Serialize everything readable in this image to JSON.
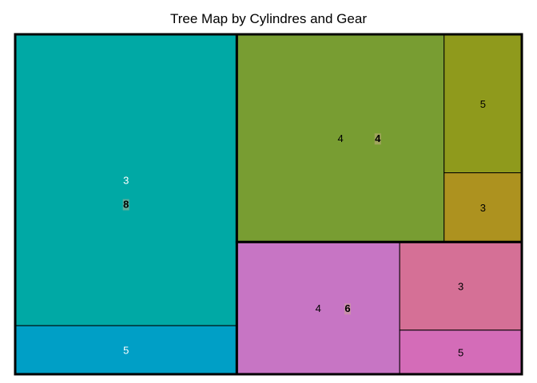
{
  "chart_data": {
    "type": "treemap",
    "title": "Tree Map by Cylindres and Gear",
    "groups": [
      {
        "name": "8",
        "color": "#00A9A5",
        "children": [
          {
            "name": "3",
            "value": 12,
            "color": "#00A9A5",
            "text_color": "#ffffff"
          },
          {
            "name": "5",
            "value": 2,
            "color": "#009FC6",
            "text_color": "#ffffff"
          }
        ]
      },
      {
        "name": "4",
        "color": "#789D32",
        "children": [
          {
            "name": "4",
            "value": 8,
            "color": "#789D32",
            "text_color": "#000000"
          },
          {
            "name": "5",
            "value": 2,
            "color": "#8F9A1C",
            "text_color": "#000000"
          },
          {
            "name": "3",
            "value": 1,
            "color": "#AD921F",
            "text_color": "#000000"
          }
        ]
      },
      {
        "name": "6",
        "color": "#C775C4",
        "children": [
          {
            "name": "4",
            "value": 4,
            "color": "#C775C4",
            "text_color": "#000000"
          },
          {
            "name": "3",
            "value": 2,
            "color": "#D57096",
            "text_color": "#000000"
          },
          {
            "name": "5",
            "value": 1,
            "color": "#D46CB8",
            "text_color": "#000000"
          }
        ]
      }
    ]
  }
}
